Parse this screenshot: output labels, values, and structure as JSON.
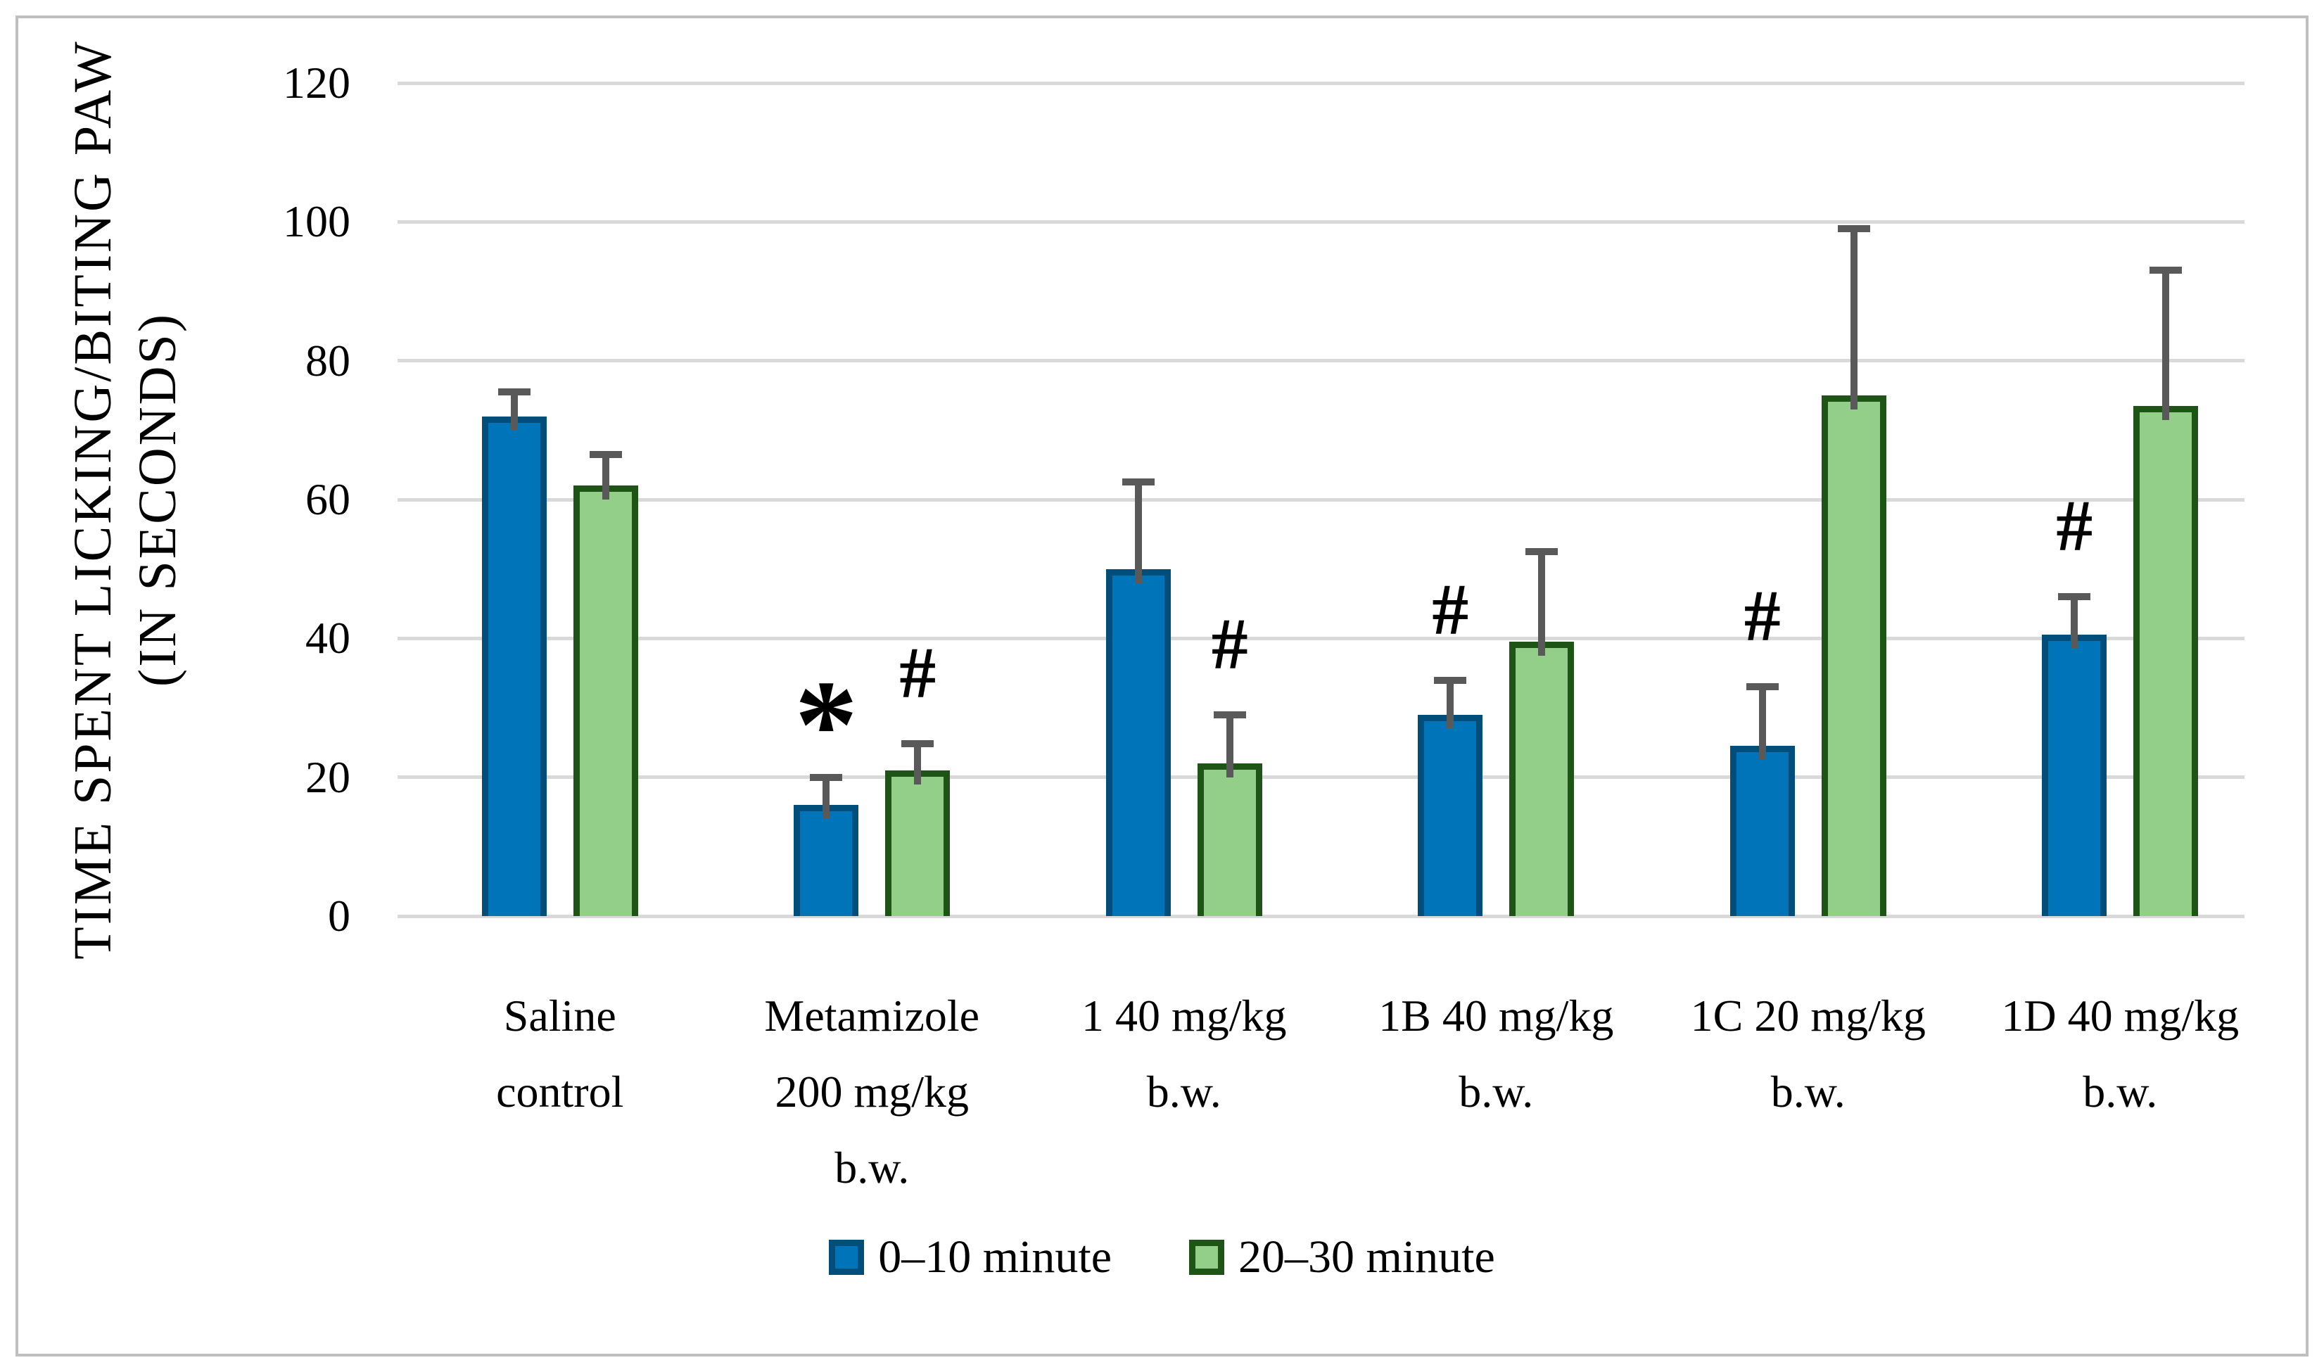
{
  "chart_data": {
    "type": "bar",
    "title": "",
    "ylabel_line1": "TIME SPENT LICKING/BITING PAW",
    "ylabel_line2": "(IN SECONDS)",
    "xlabel": "",
    "ylim": [
      0,
      120
    ],
    "yticks": [
      0,
      20,
      40,
      60,
      80,
      100,
      120
    ],
    "grid": "horizontal",
    "legend_position": "bottom",
    "categories": [
      "Saline\ncontrol",
      "Metamizole\n200 mg/kg\nb.w.",
      "1 40 mg/kg\nb.w.",
      "1B 40 mg/kg\nb.w.",
      "1C 20 mg/kg\nb.w.",
      "1D 40 mg/kg\nb.w."
    ],
    "series": [
      {
        "name": "0–10 minute",
        "fill": "#0074B8",
        "border": "#004E79",
        "values": [
          72,
          16,
          50,
          29,
          24.5,
          40.5
        ],
        "errors_plus": [
          4,
          4.5,
          13,
          5.5,
          9,
          6
        ],
        "annotations": [
          "",
          "*",
          "",
          "#",
          "#",
          "#"
        ]
      },
      {
        "name": "20–30 minute",
        "fill": "#93CF88",
        "border": "#1F5417",
        "values": [
          62,
          21,
          22,
          39.5,
          75,
          73.5
        ],
        "errors_plus": [
          5,
          4.3,
          7.5,
          13.5,
          24.5,
          20
        ],
        "annotations": [
          "",
          "#",
          "#",
          "",
          "",
          ""
        ]
      }
    ],
    "error_bar_color": "#595959",
    "gridline_color": "#D9D9D9",
    "frame_color": "#BFBFBF",
    "annotation_color": "#000000"
  }
}
